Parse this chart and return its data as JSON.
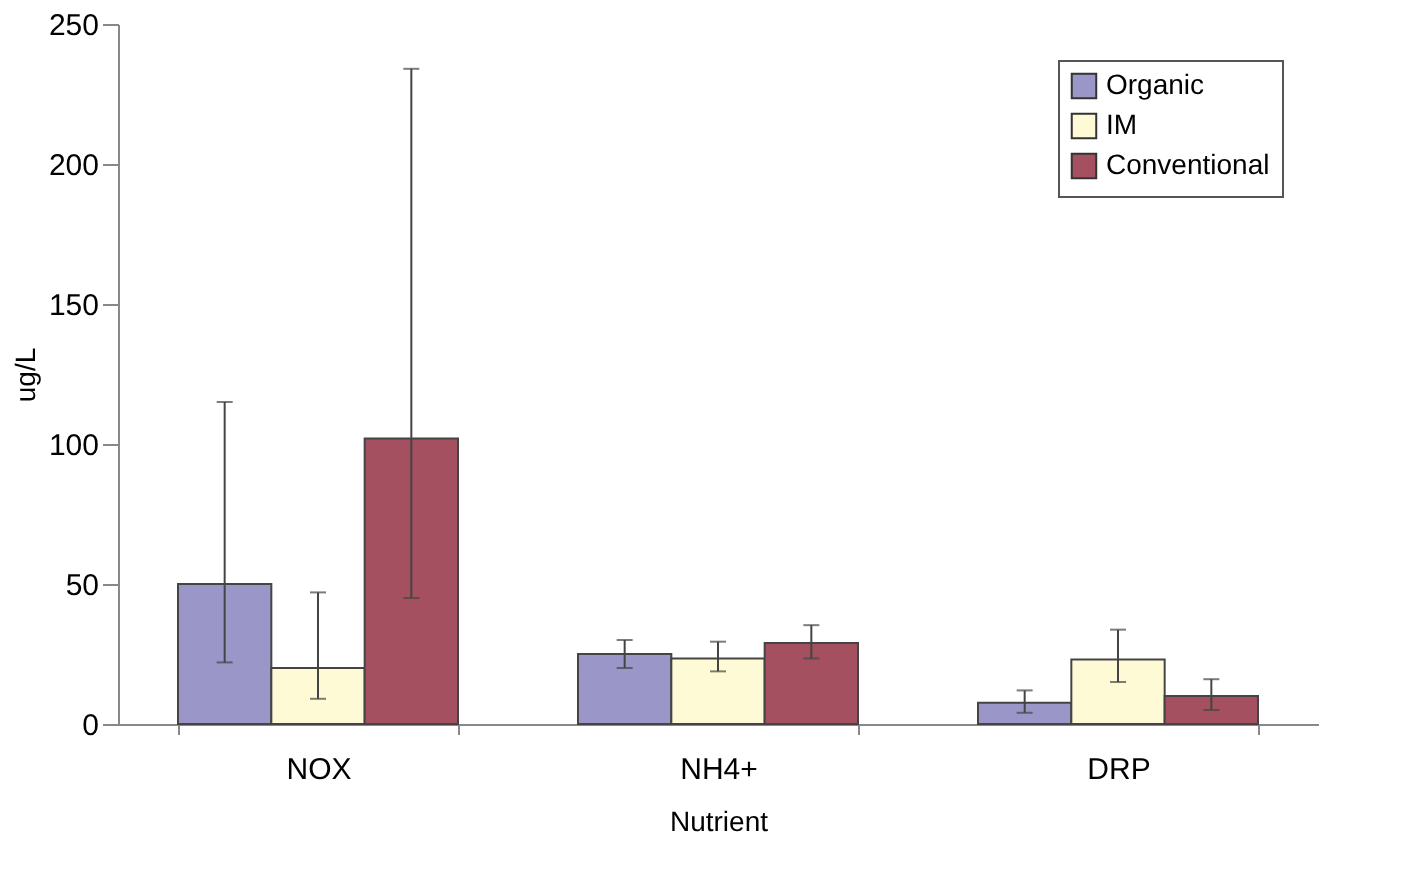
{
  "chart_data": {
    "type": "bar",
    "xlabel": "Nutrient",
    "ylabel": "ug/L",
    "categories": [
      "NOX",
      "NH4+",
      "DRP"
    ],
    "series": [
      {
        "name": "Organic",
        "color": "#9b96c8",
        "values": [
          50,
          25,
          7.6
        ],
        "errors": [
          [
            22,
            115
          ],
          [
            20,
            30
          ],
          [
            4,
            12
          ]
        ]
      },
      {
        "name": "IM",
        "color": "#fffad6",
        "values": [
          20,
          23.4,
          23
        ],
        "errors": [
          [
            9,
            47
          ],
          [
            18.8,
            29.4
          ],
          [
            15,
            33.7
          ]
        ]
      },
      {
        "name": "Conventional",
        "color": "#a45060",
        "values": [
          102,
          28.9,
          10
        ],
        "errors": [
          [
            45,
            234
          ],
          [
            23.4,
            35.3
          ],
          [
            5,
            16
          ]
        ]
      }
    ],
    "ylim": [
      0,
      250
    ],
    "yticks": [
      0,
      50,
      100,
      150,
      200,
      250
    ],
    "grid": false,
    "legend": "top right"
  }
}
